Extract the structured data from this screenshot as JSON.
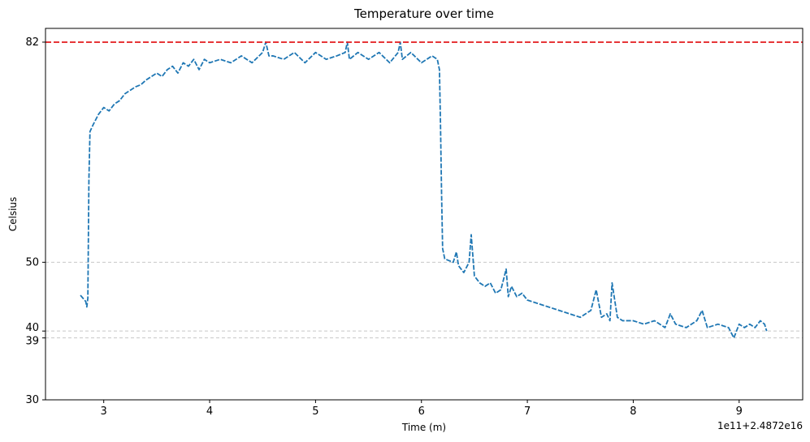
{
  "chart_data": {
    "type": "line",
    "title": "Temperature over time",
    "xlabel": "Time (m)",
    "ylabel": "Celsius",
    "x_offset_label": "1e11+2.4872e16",
    "xlim": [
      2.45,
      9.6
    ],
    "ylim": [
      30,
      84
    ],
    "x_ticks": [
      3,
      4,
      5,
      6,
      7,
      8,
      9
    ],
    "x_tick_labels": [
      "3",
      "4",
      "5",
      "6",
      "7",
      "8",
      "9"
    ],
    "y_ticks": [
      30,
      39,
      40,
      50,
      82
    ],
    "y_tick_labels": [
      "30",
      "39",
      "40",
      "50",
      "82"
    ],
    "reference_lines": [
      {
        "y": 82,
        "color": "#e31a1c",
        "style": "dashed",
        "width": 1.8
      },
      {
        "y": 50,
        "color": "#c8c8c8",
        "style": "dashed",
        "width": 1
      },
      {
        "y": 40,
        "color": "#c8c8c8",
        "style": "dashed",
        "width": 1
      },
      {
        "y": 39,
        "color": "#c8c8c8",
        "style": "dashed",
        "width": 1
      }
    ],
    "series": [
      {
        "color": "#1f77b4",
        "style": "dashed",
        "x": [
          2.78,
          2.83,
          2.84,
          2.85,
          2.86,
          2.87,
          2.9,
          2.95,
          3.0,
          3.05,
          3.1,
          3.15,
          3.2,
          3.25,
          3.3,
          3.35,
          3.4,
          3.45,
          3.5,
          3.55,
          3.6,
          3.65,
          3.7,
          3.75,
          3.8,
          3.85,
          3.9,
          3.95,
          4.0,
          4.1,
          4.2,
          4.3,
          4.4,
          4.5,
          4.53,
          4.56,
          4.6,
          4.7,
          4.8,
          4.9,
          5.0,
          5.1,
          5.2,
          5.28,
          5.3,
          5.32,
          5.4,
          5.5,
          5.6,
          5.7,
          5.78,
          5.8,
          5.82,
          5.9,
          6.0,
          6.1,
          6.15,
          6.17,
          6.18,
          6.19,
          6.2,
          6.22,
          6.25,
          6.3,
          6.33,
          6.35,
          6.4,
          6.45,
          6.47,
          6.5,
          6.55,
          6.6,
          6.65,
          6.7,
          6.75,
          6.8,
          6.82,
          6.85,
          6.9,
          6.95,
          7.0,
          7.1,
          7.2,
          7.3,
          7.4,
          7.5,
          7.6,
          7.65,
          7.7,
          7.75,
          7.78,
          7.8,
          7.85,
          7.9,
          8.0,
          8.1,
          8.2,
          8.3,
          8.35,
          8.4,
          8.5,
          8.6,
          8.65,
          8.7,
          8.8,
          8.9,
          8.95,
          9.0,
          9.05,
          9.1,
          9.15,
          9.2,
          9.24,
          9.26
        ],
        "y": [
          45.2,
          44.3,
          43.5,
          44.8,
          62.0,
          69.0,
          70.0,
          71.5,
          72.5,
          72.0,
          73.0,
          73.5,
          74.5,
          75.0,
          75.5,
          75.8,
          76.5,
          77.0,
          77.5,
          77.0,
          78.0,
          78.5,
          77.5,
          79.0,
          78.5,
          79.5,
          78.0,
          79.5,
          79.0,
          79.5,
          79.0,
          80.0,
          79.0,
          80.5,
          82.0,
          80.0,
          80.0,
          79.5,
          80.5,
          79.0,
          80.5,
          79.5,
          80.0,
          80.5,
          82.0,
          79.5,
          80.5,
          79.5,
          80.5,
          79.0,
          80.5,
          82.0,
          79.5,
          80.5,
          79.0,
          80.0,
          79.5,
          78.0,
          70.0,
          60.0,
          52.0,
          50.5,
          50.3,
          50.0,
          51.5,
          49.5,
          48.5,
          50.0,
          54.0,
          48.0,
          47.0,
          46.5,
          47.0,
          45.5,
          46.0,
          49.0,
          45.0,
          46.5,
          45.0,
          45.5,
          44.5,
          44.0,
          43.5,
          43.0,
          42.5,
          42.0,
          43.0,
          46.0,
          42.0,
          42.5,
          41.5,
          47.0,
          42.0,
          41.5,
          41.5,
          41.0,
          41.5,
          40.5,
          42.5,
          41.0,
          40.5,
          41.5,
          43.0,
          40.5,
          41.0,
          40.5,
          39.0,
          41.0,
          40.5,
          41.0,
          40.5,
          41.5,
          41.0,
          40.0
        ]
      }
    ]
  }
}
